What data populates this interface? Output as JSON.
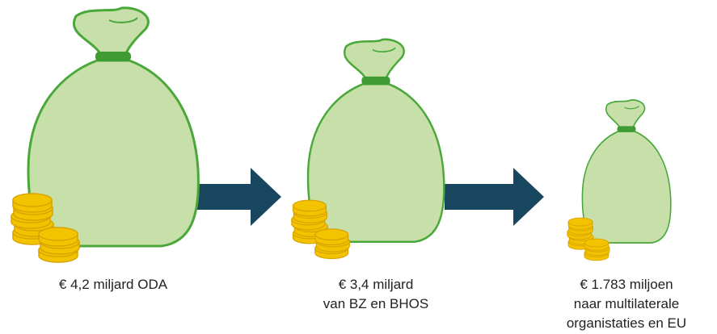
{
  "items": [
    {
      "label_lines": [
        "€ 4,2 miljard ODA"
      ]
    },
    {
      "label_lines": [
        "€ 3,4 miljard",
        "van BZ en BHOS"
      ]
    },
    {
      "label_lines": [
        "€ 1.783 miljoen",
        "naar multilaterale",
        "organistaties en EU"
      ]
    }
  ]
}
